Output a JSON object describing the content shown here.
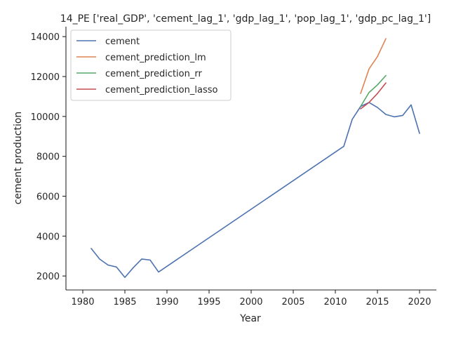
{
  "chart_data": {
    "type": "line",
    "title": "14_PE ['real_GDP', 'cement_lag_1', 'gdp_lag_1', 'pop_lag_1', 'gdp_pc_lag_1']",
    "xlabel": "Year",
    "ylabel": "cement production",
    "xlim": [
      1978,
      2022
    ],
    "ylim": [
      1300,
      14500
    ],
    "xticks": [
      1980,
      1985,
      1990,
      1995,
      2000,
      2005,
      2010,
      2015,
      2020
    ],
    "yticks": [
      2000,
      4000,
      6000,
      8000,
      10000,
      12000,
      14000
    ],
    "grid": false,
    "legend_position": "top-left",
    "series": [
      {
        "name": "cement",
        "color": "#4c72b0",
        "x": [
          1981,
          1982,
          1983,
          1984,
          1985,
          1986,
          1987,
          1988,
          1989,
          2011,
          2012,
          2013,
          2014,
          2015,
          2016,
          2017,
          2018,
          2019,
          2020
        ],
        "y": [
          3380,
          2850,
          2550,
          2450,
          1930,
          2420,
          2850,
          2800,
          2200,
          8500,
          9850,
          10500,
          10700,
          10450,
          10100,
          9980,
          10050,
          10580,
          9150
        ]
      },
      {
        "name": "cement_prediction_lm",
        "color": "#dd8452",
        "x": [
          2013,
          2014,
          2015,
          2016
        ],
        "y": [
          11150,
          12380,
          13000,
          13900
        ]
      },
      {
        "name": "cement_prediction_rr",
        "color": "#55a868",
        "x": [
          2013,
          2014,
          2015,
          2016
        ],
        "y": [
          10500,
          11200,
          11580,
          12050
        ]
      },
      {
        "name": "cement_prediction_lasso",
        "color": "#c44e52",
        "x": [
          2013,
          2014,
          2015,
          2016
        ],
        "y": [
          10380,
          10700,
          11150,
          11680
        ]
      }
    ]
  }
}
